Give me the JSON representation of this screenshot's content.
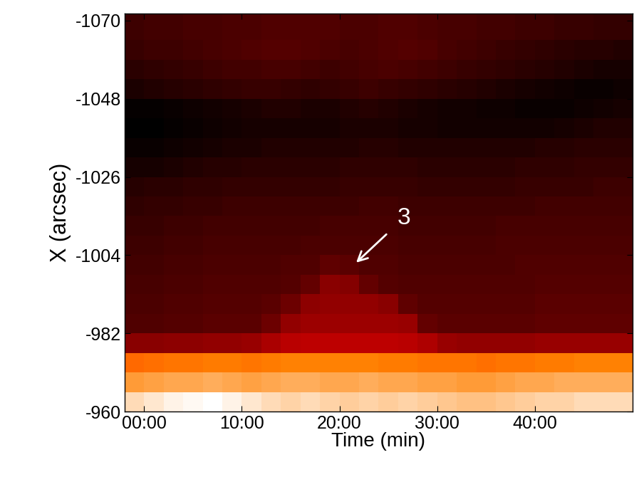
{
  "chart_data": {
    "type": "heatmap",
    "x_label": "Time (min)",
    "y_label": "X (arcsec)",
    "xlim": [
      -2,
      50
    ],
    "ylim": [
      -960,
      -1072
    ],
    "xticks": [
      {
        "value": 0,
        "label": "00:00"
      },
      {
        "value": 10,
        "label": "10:00"
      },
      {
        "value": 20,
        "label": "20:00"
      },
      {
        "value": 30,
        "label": "30:00"
      },
      {
        "value": 40,
        "label": "40:00"
      }
    ],
    "yticks": [
      -1070,
      -1048,
      -1026,
      -1004,
      -982,
      -960
    ],
    "cells": {
      "x_edges": [
        -2,
        0,
        2,
        4,
        6,
        8,
        10,
        12,
        14,
        16,
        18,
        20,
        22,
        24,
        26,
        28,
        30,
        32,
        34,
        36,
        38,
        40,
        42,
        44,
        46,
        48,
        50
      ],
      "y_edges": [
        -1072,
        -1064.5,
        -1059,
        -1053.5,
        -1048,
        -1042.5,
        -1037,
        -1031.5,
        -1026,
        -1020.5,
        -1015,
        -1009.5,
        -1004,
        -998.5,
        -993,
        -987.5,
        -982,
        -976.5,
        -971,
        -965.5,
        -960
      ],
      "values": [
        [
          0.26,
          0.27,
          0.27,
          0.28,
          0.28,
          0.29,
          0.29,
          0.3,
          0.3,
          0.3,
          0.3,
          0.29,
          0.29,
          0.3,
          0.3,
          0.29,
          0.28,
          0.28,
          0.27,
          0.27,
          0.26,
          0.26,
          0.25,
          0.25,
          0.24,
          0.24
        ],
        [
          0.25,
          0.26,
          0.26,
          0.27,
          0.28,
          0.29,
          0.3,
          0.31,
          0.31,
          0.3,
          0.29,
          0.28,
          0.29,
          0.3,
          0.31,
          0.3,
          0.28,
          0.27,
          0.26,
          0.25,
          0.24,
          0.23,
          0.22,
          0.21,
          0.21,
          0.2
        ],
        [
          0.22,
          0.23,
          0.24,
          0.25,
          0.26,
          0.27,
          0.27,
          0.28,
          0.28,
          0.27,
          0.26,
          0.27,
          0.28,
          0.29,
          0.28,
          0.27,
          0.26,
          0.25,
          0.24,
          0.23,
          0.22,
          0.21,
          0.2,
          0.19,
          0.18,
          0.18
        ],
        [
          0.19,
          0.2,
          0.21,
          0.22,
          0.23,
          0.24,
          0.25,
          0.25,
          0.24,
          0.23,
          0.24,
          0.25,
          0.26,
          0.25,
          0.24,
          0.23,
          0.22,
          0.21,
          0.2,
          0.19,
          0.18,
          0.17,
          0.16,
          0.15,
          0.15,
          0.16
        ],
        [
          0.14,
          0.14,
          0.15,
          0.16,
          0.17,
          0.18,
          0.19,
          0.2,
          0.2,
          0.19,
          0.19,
          0.2,
          0.21,
          0.2,
          0.19,
          0.18,
          0.17,
          0.17,
          0.16,
          0.16,
          0.15,
          0.15,
          0.15,
          0.16,
          0.17,
          0.18
        ],
        [
          0.13,
          0.13,
          0.14,
          0.15,
          0.16,
          0.17,
          0.18,
          0.18,
          0.18,
          0.18,
          0.18,
          0.19,
          0.19,
          0.19,
          0.18,
          0.18,
          0.17,
          0.17,
          0.17,
          0.17,
          0.17,
          0.17,
          0.18,
          0.19,
          0.2,
          0.2
        ],
        [
          0.15,
          0.15,
          0.16,
          0.17,
          0.18,
          0.19,
          0.19,
          0.2,
          0.2,
          0.2,
          0.2,
          0.2,
          0.21,
          0.21,
          0.2,
          0.2,
          0.2,
          0.2,
          0.2,
          0.2,
          0.2,
          0.21,
          0.21,
          0.22,
          0.22,
          0.22
        ],
        [
          0.18,
          0.18,
          0.19,
          0.2,
          0.21,
          0.21,
          0.22,
          0.22,
          0.22,
          0.22,
          0.22,
          0.23,
          0.23,
          0.23,
          0.23,
          0.22,
          0.22,
          0.22,
          0.22,
          0.22,
          0.23,
          0.23,
          0.23,
          0.24,
          0.24,
          0.24
        ],
        [
          0.21,
          0.22,
          0.22,
          0.23,
          0.23,
          0.24,
          0.24,
          0.24,
          0.24,
          0.24,
          0.24,
          0.25,
          0.25,
          0.25,
          0.25,
          0.24,
          0.24,
          0.24,
          0.24,
          0.24,
          0.25,
          0.25,
          0.25,
          0.25,
          0.26,
          0.26
        ],
        [
          0.23,
          0.24,
          0.24,
          0.25,
          0.25,
          0.26,
          0.26,
          0.26,
          0.26,
          0.26,
          0.26,
          0.26,
          0.27,
          0.27,
          0.26,
          0.26,
          0.26,
          0.26,
          0.26,
          0.26,
          0.26,
          0.27,
          0.27,
          0.27,
          0.27,
          0.27
        ],
        [
          0.25,
          0.25,
          0.26,
          0.26,
          0.27,
          0.27,
          0.27,
          0.27,
          0.27,
          0.27,
          0.28,
          0.28,
          0.28,
          0.28,
          0.27,
          0.27,
          0.27,
          0.27,
          0.27,
          0.28,
          0.28,
          0.28,
          0.28,
          0.28,
          0.28,
          0.28
        ],
        [
          0.26,
          0.26,
          0.27,
          0.27,
          0.28,
          0.28,
          0.28,
          0.28,
          0.28,
          0.29,
          0.29,
          0.29,
          0.29,
          0.29,
          0.28,
          0.28,
          0.28,
          0.28,
          0.28,
          0.29,
          0.29,
          0.29,
          0.29,
          0.29,
          0.29,
          0.29
        ],
        [
          0.27,
          0.27,
          0.28,
          0.28,
          0.29,
          0.29,
          0.29,
          0.29,
          0.3,
          0.3,
          0.33,
          0.32,
          0.3,
          0.3,
          0.29,
          0.29,
          0.29,
          0.29,
          0.29,
          0.29,
          0.3,
          0.3,
          0.3,
          0.3,
          0.3,
          0.3
        ],
        [
          0.28,
          0.28,
          0.29,
          0.29,
          0.3,
          0.3,
          0.3,
          0.3,
          0.31,
          0.34,
          0.42,
          0.41,
          0.34,
          0.31,
          0.3,
          0.3,
          0.3,
          0.3,
          0.3,
          0.3,
          0.3,
          0.31,
          0.31,
          0.31,
          0.31,
          0.31
        ],
        [
          0.29,
          0.29,
          0.3,
          0.3,
          0.31,
          0.31,
          0.31,
          0.32,
          0.36,
          0.43,
          0.44,
          0.44,
          0.44,
          0.42,
          0.33,
          0.31,
          0.31,
          0.31,
          0.31,
          0.31,
          0.31,
          0.32,
          0.32,
          0.32,
          0.32,
          0.32
        ],
        [
          0.3,
          0.3,
          0.31,
          0.31,
          0.32,
          0.32,
          0.32,
          0.36,
          0.44,
          0.46,
          0.46,
          0.46,
          0.46,
          0.46,
          0.45,
          0.34,
          0.32,
          0.32,
          0.32,
          0.32,
          0.32,
          0.33,
          0.33,
          0.33,
          0.33,
          0.33
        ],
        [
          0.42,
          0.42,
          0.43,
          0.43,
          0.44,
          0.44,
          0.45,
          0.49,
          0.52,
          0.53,
          0.53,
          0.53,
          0.53,
          0.53,
          0.52,
          0.5,
          0.45,
          0.44,
          0.44,
          0.44,
          0.44,
          0.45,
          0.45,
          0.45,
          0.45,
          0.45
        ],
        [
          0.7,
          0.71,
          0.72,
          0.72,
          0.73,
          0.73,
          0.72,
          0.73,
          0.74,
          0.74,
          0.74,
          0.74,
          0.74,
          0.73,
          0.73,
          0.72,
          0.72,
          0.72,
          0.71,
          0.72,
          0.72,
          0.73,
          0.73,
          0.74,
          0.74,
          0.74
        ],
        [
          0.78,
          0.79,
          0.8,
          0.8,
          0.81,
          0.8,
          0.79,
          0.8,
          0.81,
          0.81,
          0.8,
          0.8,
          0.81,
          0.8,
          0.8,
          0.79,
          0.79,
          0.78,
          0.78,
          0.79,
          0.8,
          0.8,
          0.81,
          0.81,
          0.81,
          0.81
        ],
        [
          0.88,
          0.9,
          0.92,
          0.93,
          0.94,
          0.92,
          0.9,
          0.88,
          0.87,
          0.88,
          0.87,
          0.86,
          0.87,
          0.86,
          0.87,
          0.86,
          0.85,
          0.84,
          0.84,
          0.85,
          0.86,
          0.87,
          0.87,
          0.88,
          0.88,
          0.88
        ]
      ]
    },
    "annotations": [
      {
        "text": "3",
        "x": 21.7,
        "y": -1001.9
      }
    ]
  }
}
